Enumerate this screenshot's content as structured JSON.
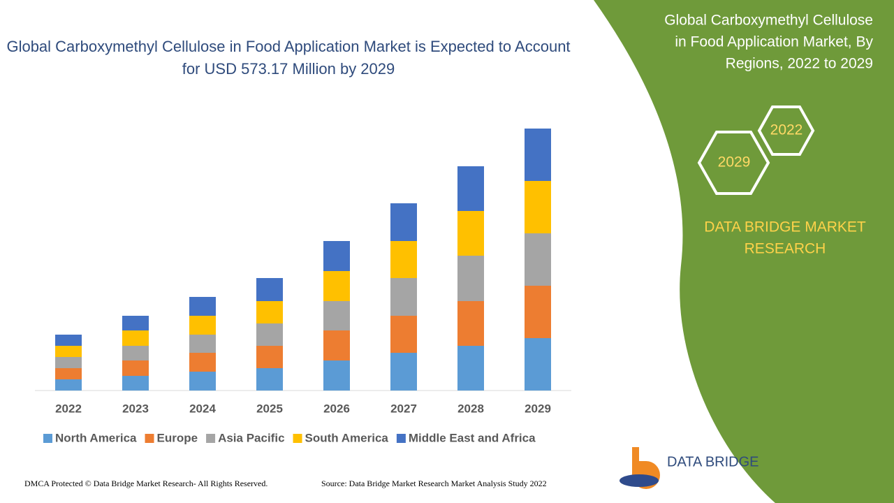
{
  "chart_data": {
    "type": "stacked-bar",
    "title": "Global Carboxymethyl Cellulose in Food Application Market is Expected to Account for USD 573.17 Million by 2029",
    "categories": [
      "2022",
      "2023",
      "2024",
      "2025",
      "2026",
      "2027",
      "2028",
      "2029"
    ],
    "series": [
      {
        "name": "North America",
        "color": "#5b9bd5",
        "values": [
          16,
          21,
          27,
          32,
          43,
          54,
          64,
          75
        ]
      },
      {
        "name": "Europe",
        "color": "#ed7d31",
        "values": [
          16,
          22,
          27,
          32,
          43,
          53,
          64,
          75
        ]
      },
      {
        "name": "Asia Pacific",
        "color": "#a5a5a5",
        "values": [
          16,
          21,
          26,
          32,
          42,
          54,
          65,
          75
        ]
      },
      {
        "name": "South America",
        "color": "#ffc000",
        "values": [
          16,
          22,
          27,
          32,
          43,
          53,
          64,
          75
        ]
      },
      {
        "name": "Middle East and Africa",
        "color": "#4472c4",
        "values": [
          16,
          21,
          27,
          33,
          43,
          54,
          64,
          75
        ]
      }
    ]
  },
  "panel": {
    "title": [
      "Global Carboxymethyl Cellulose",
      "in Food Application Market, By",
      "Regions, 2022 to 2029"
    ],
    "hex_labels": [
      "2022",
      "2029"
    ],
    "brand": [
      "DATA BRIDGE MARKET",
      "RESEARCH"
    ]
  },
  "logo": "DATA BRIDGE",
  "footer": {
    "left": "DMCA Protected © Data Bridge Market Research- All Rights Reserved.",
    "right": "Source: Data Bridge Market Research Market Analysis Study 2022"
  }
}
